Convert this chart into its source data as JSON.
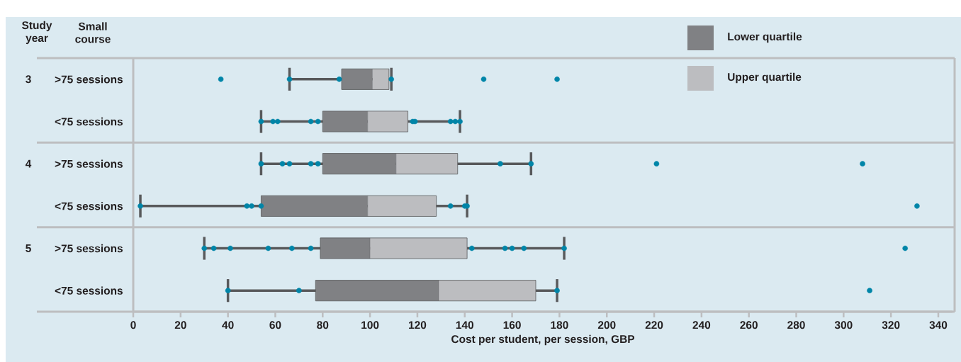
{
  "chart_data": {
    "type": "box",
    "orientation": "horizontal",
    "xlabel": "Cost per student, per session, GBP",
    "categories": [
      ">75 sessions",
      "<75 sessions",
      ">75 sessions",
      "<75 sessions",
      ">75 sessions",
      "<75 sessions"
    ],
    "annotations": [
      "Study year",
      "Small course",
      "3",
      "4",
      "5"
    ],
    "series": [
      {
        "name": "Lower quartile",
        "type": "bar",
        "color": "#808184",
        "base": [
          88,
          80,
          80,
          54,
          79,
          77
        ],
        "values": [
          13,
          19,
          31,
          45,
          21,
          52
        ]
      },
      {
        "name": "Upper quartile",
        "type": "bar",
        "color": "#bcbdc0",
        "base": [
          101,
          99,
          111,
          99,
          100,
          129
        ],
        "values": [
          7,
          17,
          26,
          29,
          41,
          41
        ]
      }
    ],
    "color": "#58595b",
    "marker": "circle",
    "boxes": [
      {
        "low": 66,
        "q1": 88,
        "median": 101,
        "q3": 108,
        "high": 109,
        "outliers": [
          37,
          66,
          87,
          109,
          148,
          179
        ]
      },
      {
        "low": 54,
        "q1": 80,
        "median": 99,
        "q3": 116,
        "high": 138,
        "outliers": [
          54,
          59,
          61,
          75,
          78,
          118,
          119,
          134,
          136,
          138
        ]
      },
      {
        "low": 54,
        "q1": 80,
        "median": 111,
        "q3": 137,
        "high": 168,
        "outliers": [
          54,
          63,
          66,
          75,
          78,
          155,
          168,
          221,
          308
        ]
      },
      {
        "low": 3,
        "q1": 54,
        "median": 99,
        "q3": 128,
        "high": 141,
        "outliers": [
          3,
          48,
          50,
          54,
          134,
          140,
          141,
          331
        ]
      },
      {
        "low": 30,
        "q1": 79,
        "median": 100,
        "q3": 141,
        "high": 182,
        "outliers": [
          30,
          34,
          41,
          57,
          67,
          75,
          143,
          157,
          160,
          165,
          182,
          326
        ]
      },
      {
        "low": 40,
        "q1": 77,
        "median": 129,
        "q3": 170,
        "high": 179,
        "outliers": [
          40,
          70,
          179,
          311
        ]
      }
    ],
    "xlim": [
      0,
      346
    ],
    "xticks": [
      0,
      20,
      40,
      60,
      80,
      100,
      120,
      140,
      160,
      180,
      200,
      220,
      240,
      260,
      280,
      300,
      320,
      340
    ],
    "legend": "top right"
  }
}
